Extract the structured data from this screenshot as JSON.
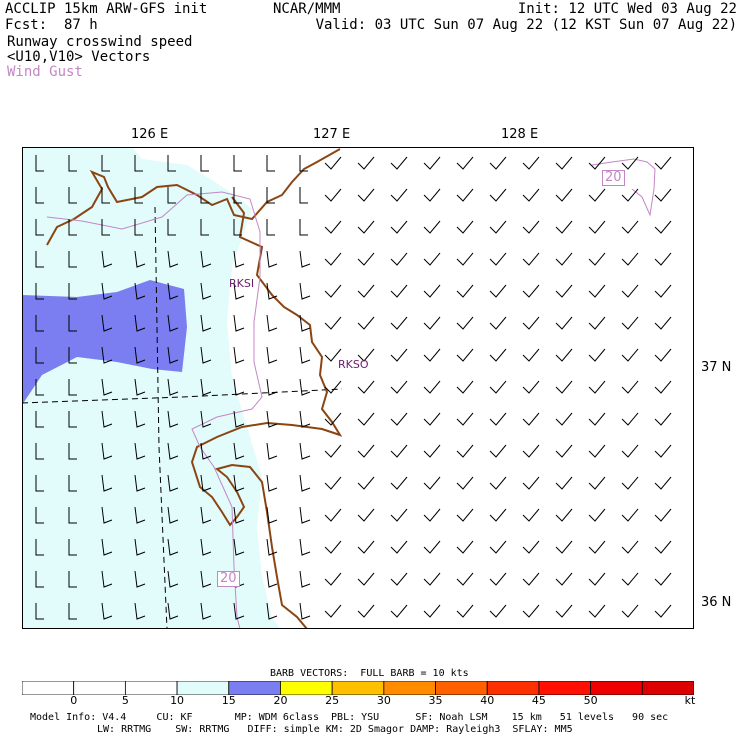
{
  "header": {
    "model_title": "ACCLIP 15km ARW-GFS init",
    "fcst_label": "Fcst:",
    "fcst_value": "87 h",
    "center": "NCAR/MMM",
    "init": "Init: 12 UTC Wed 03 Aug 22",
    "valid": "Valid: 03 UTC Sun 07 Aug 22 (12 KST Sun 07 Aug 22)",
    "field_name": "Runway crosswind speed",
    "vectors_label": "<U10,V10> Vectors",
    "gust_label": "Wind Gust"
  },
  "map": {
    "lon_labels": [
      "126 E",
      "127 E",
      "128 E"
    ],
    "lat_labels": [
      "37 N",
      "36 N"
    ],
    "stations": [
      "RKSI",
      "RKSO"
    ],
    "gust_contour_labels": [
      "20",
      "20"
    ],
    "colors": {
      "land_pale": "#e2fbfb",
      "shade_15_20": "#7a7ef0",
      "coast": "#8b4513",
      "gust_contour": "#c487c4",
      "barb": "#000000"
    }
  },
  "colorbar": {
    "title": "BARB VECTORS:  FULL BARB = 10 kts",
    "ticks": [
      "0",
      "5",
      "10",
      "15",
      "20",
      "25",
      "30",
      "35",
      "40",
      "45",
      "50"
    ],
    "unit": "kt",
    "segment_colors": [
      "#ffffff",
      "#ffffff",
      "#ffffff",
      "#e2fbfb",
      "#7a7ef0",
      "#ffff00",
      "#ffc000",
      "#ff8c00",
      "#ff6000",
      "#ff3000",
      "#ff1000",
      "#ee0000",
      "#dd0000"
    ]
  },
  "footer": {
    "line1": "Model Info: V4.4     CU: KF       MP: WDM 6class  PBL: YSU      SF: Noah LSM    15 km   51 levels   90 sec",
    "line2": "LW: RRTMG    SW: RRTMG   DIFF: simple KM: 2D Smagor DAMP: Rayleigh3  SFLAY: MM5"
  }
}
